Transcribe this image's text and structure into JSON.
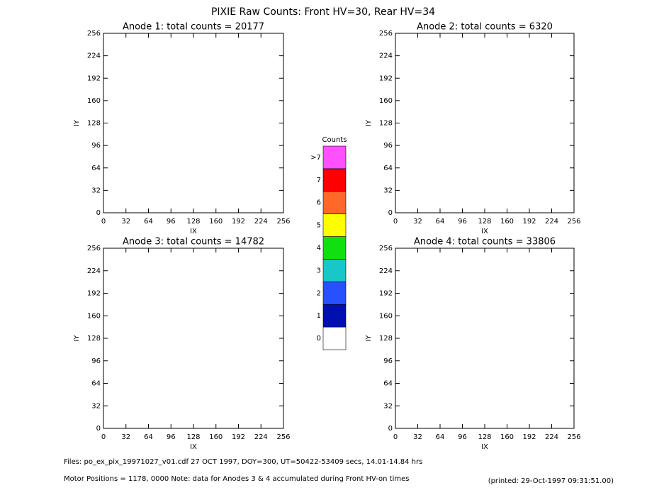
{
  "title": "PIXIE Raw Counts:  Front HV=30, Rear HV=34",
  "chart_data": [
    {
      "type": "heatmap",
      "title": "Anode 1: total counts = 20177",
      "xlabel": "IX",
      "ylabel": "IY",
      "xlim": [
        0,
        256
      ],
      "ylim": [
        0,
        256
      ],
      "xticks": [
        0,
        32,
        64,
        96,
        128,
        160,
        192,
        224,
        256
      ],
      "yticks": [
        0,
        32,
        64,
        96,
        128,
        160,
        192,
        224,
        256
      ]
    },
    {
      "type": "heatmap",
      "title": "Anode 2: total counts = 6320",
      "xlabel": "IX",
      "ylabel": "IY",
      "xlim": [
        0,
        256
      ],
      "ylim": [
        0,
        256
      ],
      "xticks": [
        0,
        32,
        64,
        96,
        128,
        160,
        192,
        224,
        256
      ],
      "yticks": [
        0,
        32,
        64,
        96,
        128,
        160,
        192,
        224,
        256
      ]
    },
    {
      "type": "heatmap",
      "title": "Anode 3: total counts = 14782",
      "xlabel": "IX",
      "ylabel": "IY",
      "xlim": [
        0,
        256
      ],
      "ylim": [
        0,
        256
      ],
      "xticks": [
        0,
        32,
        64,
        96,
        128,
        160,
        192,
        224,
        256
      ],
      "yticks": [
        0,
        32,
        64,
        96,
        128,
        160,
        192,
        224,
        256
      ]
    },
    {
      "type": "heatmap",
      "title": "Anode 4: total counts = 33806",
      "xlabel": "IX",
      "ylabel": "IY",
      "xlim": [
        0,
        256
      ],
      "ylim": [
        0,
        256
      ],
      "xticks": [
        0,
        32,
        64,
        96,
        128,
        160,
        192,
        224,
        256
      ],
      "yticks": [
        0,
        32,
        64,
        96,
        128,
        160,
        192,
        224,
        256
      ]
    }
  ],
  "colorbar": {
    "title": "Counts",
    "labels": [
      "0",
      "1",
      "2",
      "3",
      "4",
      "5",
      "6",
      "7",
      ">7"
    ],
    "colors": [
      "#ffffff",
      "#0010b0",
      "#2850ff",
      "#18c8c8",
      "#10e010",
      "#ffff00",
      "#ff6828",
      "#ff0000",
      "#ff50ff"
    ]
  },
  "footer": {
    "files": "Files: po_ex_pix_19971027_v01.cdf    27 OCT 1997, DOY=300, UT=50422-53409 secs, 14.01-14.84 hrs",
    "motor": "Motor Positions = 1178, 0000   Note: data for Anodes 3 & 4 accumulated during Front HV-on times",
    "printed": "(printed: 29-Oct-1997 09:31:51.00)"
  }
}
